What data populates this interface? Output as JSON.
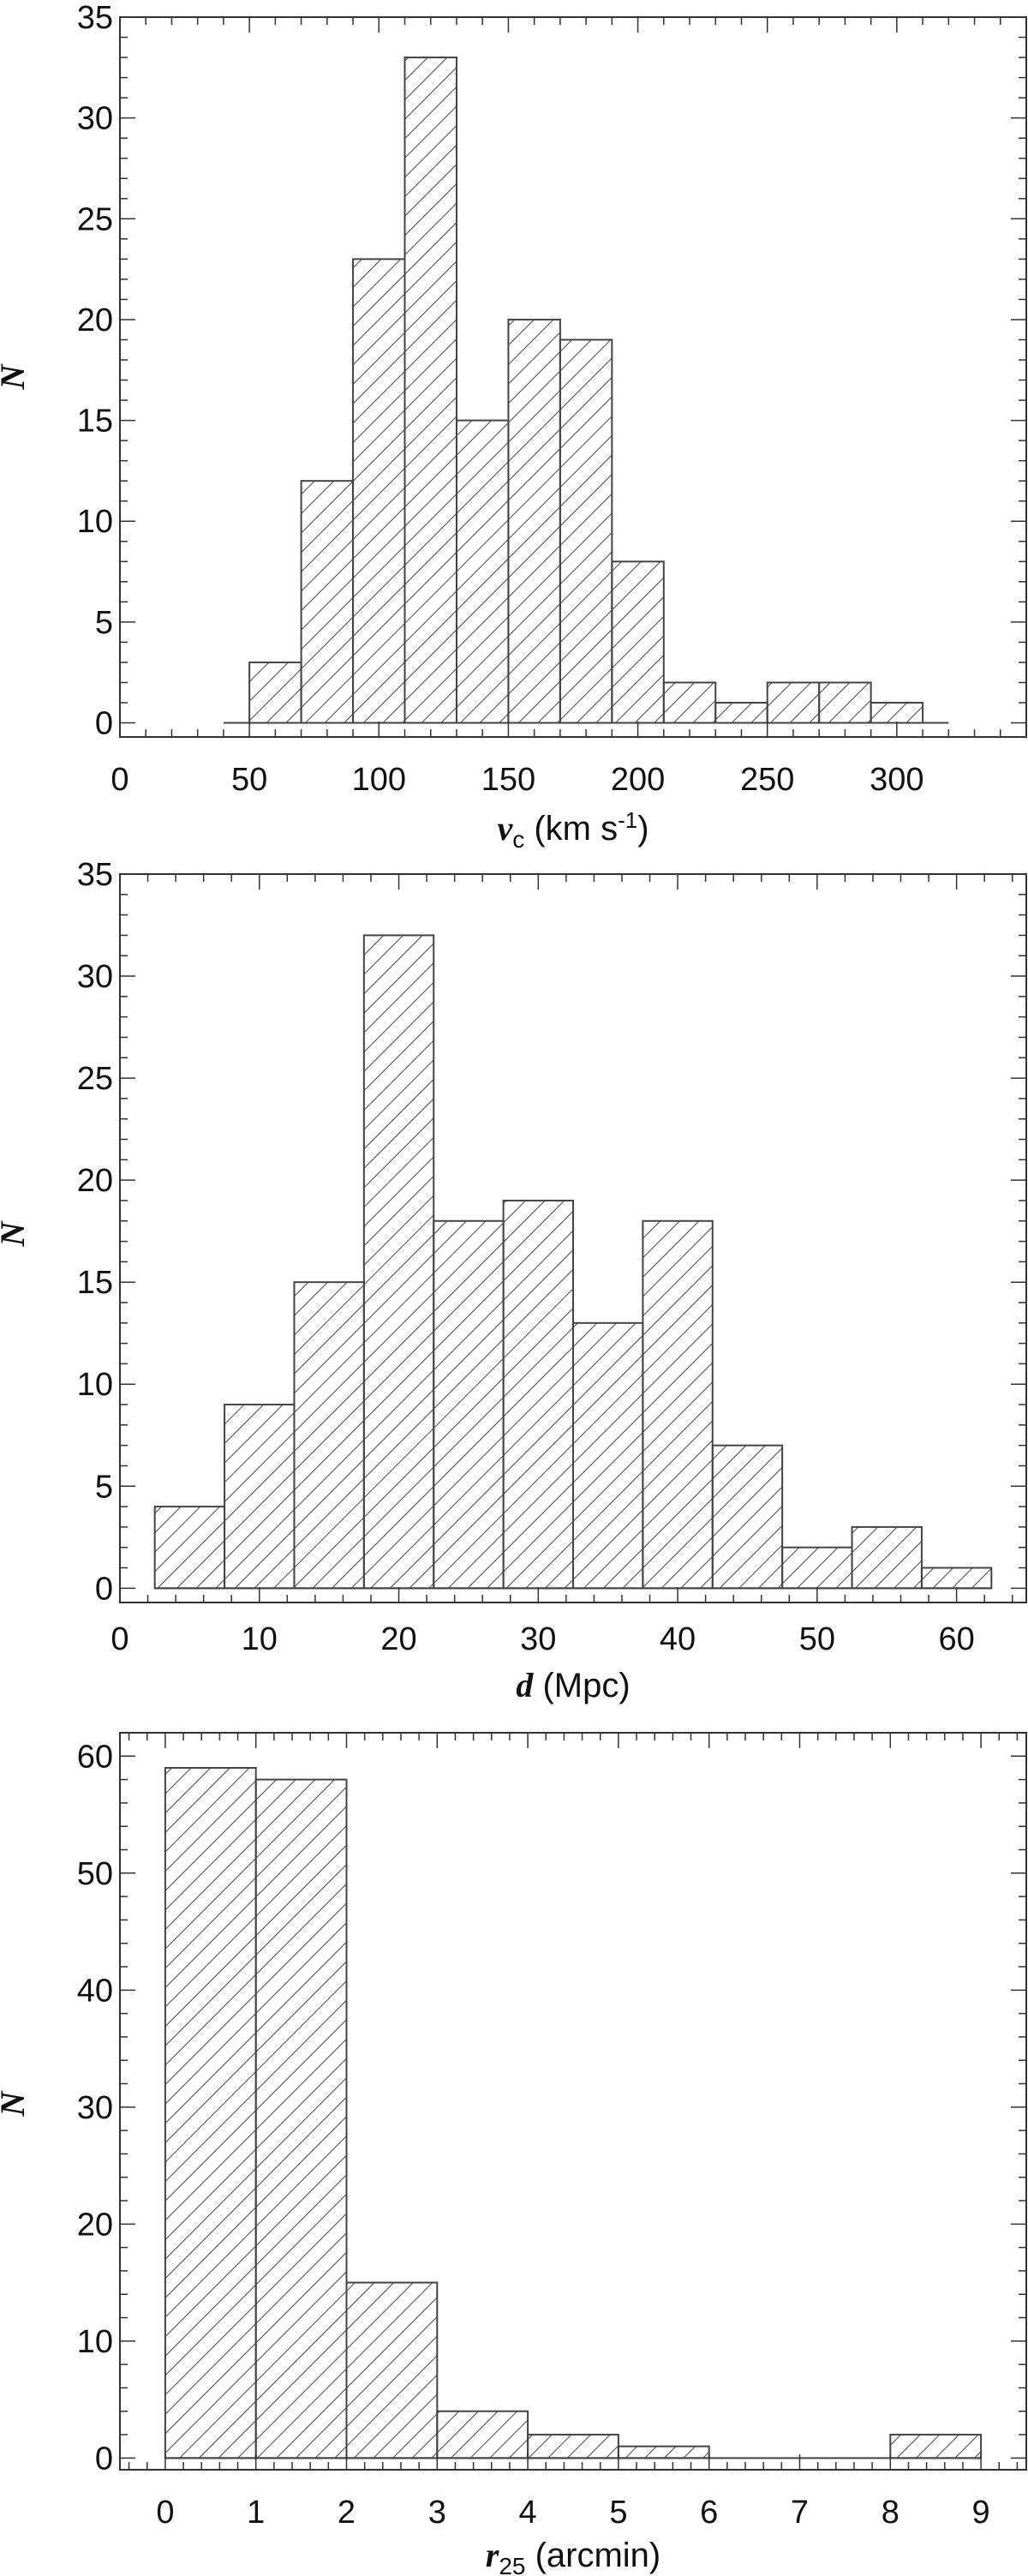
{
  "chart_data": [
    {
      "type": "bar",
      "bin_edges": [
        40,
        50,
        70,
        90,
        110,
        130,
        150,
        170,
        190,
        210,
        230,
        250,
        270,
        290,
        310
      ],
      "values": [
        0,
        3,
        12,
        23,
        33,
        15,
        20,
        19,
        8,
        2,
        1,
        2,
        2,
        1
      ],
      "xlim": [
        0,
        350
      ],
      "ylim": [
        -0.7,
        35
      ],
      "xticks": [
        0,
        50,
        100,
        150,
        200,
        250,
        300
      ],
      "yticks": [
        0,
        5,
        10,
        15,
        20,
        25,
        30,
        35
      ],
      "xminor": 10,
      "yminor": 1,
      "tail_to": 320,
      "ylabel": "N",
      "xlabel_var": "v",
      "xlabel_sub": "c",
      "xlabel_unit": " (km s",
      "xlabel_sup": "-1",
      "xlabel_close": ")",
      "fill": "hatched"
    },
    {
      "type": "bar",
      "bin_edges": [
        2.5,
        7.5,
        12.5,
        17.5,
        22.5,
        27.5,
        32.5,
        37.5,
        42.5,
        47.5,
        52.5,
        57.5,
        62.5
      ],
      "values": [
        4,
        9,
        15,
        32,
        18,
        19,
        13,
        18,
        7,
        2,
        3,
        1
      ],
      "xlim": [
        0,
        65
      ],
      "ylim": [
        -0.7,
        35
      ],
      "xticks": [
        0,
        10,
        20,
        30,
        40,
        50,
        60
      ],
      "yticks": [
        0,
        5,
        10,
        15,
        20,
        25,
        30,
        35
      ],
      "xminor": 2,
      "yminor": 1,
      "ylabel": "N",
      "xlabel_var": "d",
      "xlabel_unit": " (Mpc)",
      "fill": "hatched"
    },
    {
      "type": "bar",
      "bin_edges": [
        0,
        1,
        2,
        3,
        4,
        5,
        6,
        7,
        8,
        9
      ],
      "values": [
        59,
        58,
        15,
        4,
        2,
        1,
        0,
        0,
        2
      ],
      "xlim": [
        -0.5,
        9.5
      ],
      "ylim": [
        -1,
        62
      ],
      "xticks": [
        0,
        1,
        2,
        3,
        4,
        5,
        6,
        7,
        8,
        9
      ],
      "yticks": [
        0,
        10,
        20,
        30,
        40,
        50,
        60
      ],
      "xminor": 0.2,
      "yminor": 2,
      "ylabel": "N",
      "xlabel_var": "r",
      "xlabel_sub": "25",
      "xlabel_unit": " (arcmin)",
      "fill": "hatched"
    }
  ]
}
